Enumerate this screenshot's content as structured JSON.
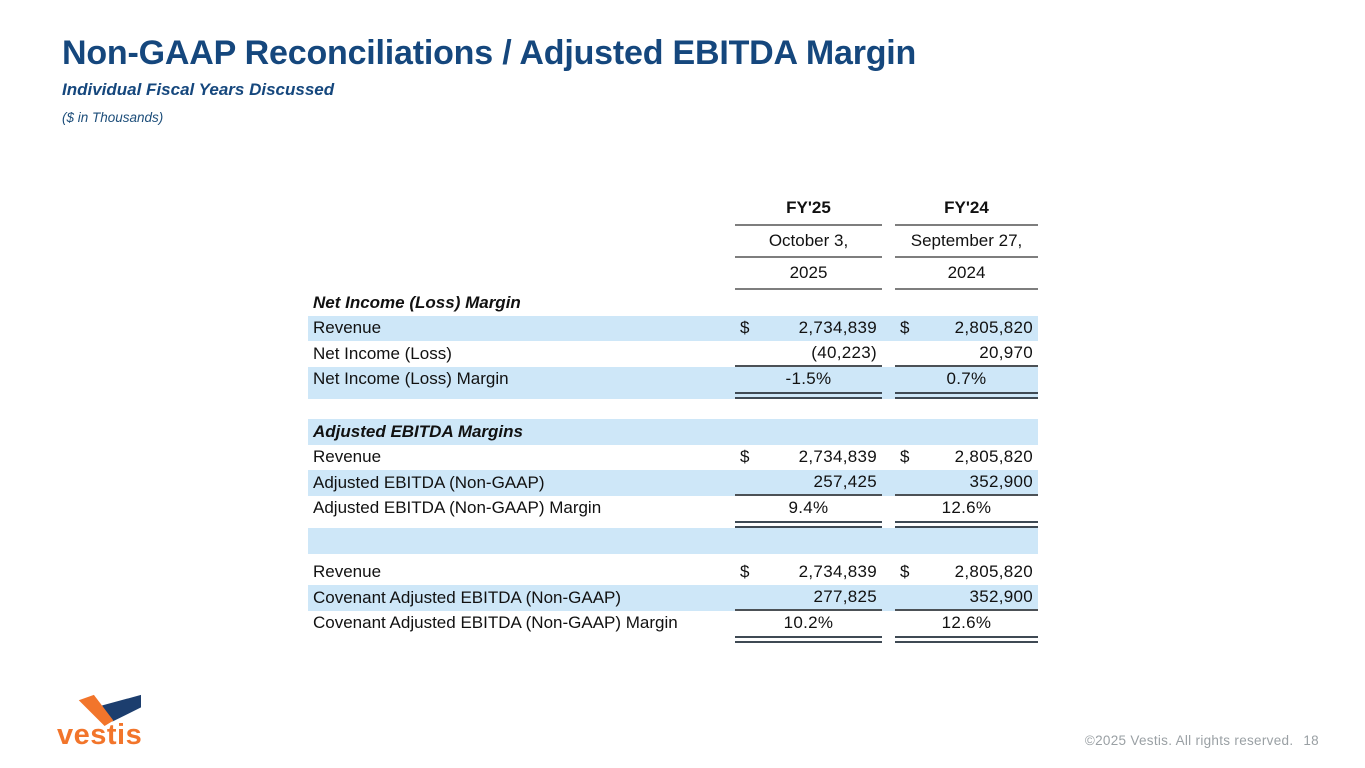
{
  "slide": {
    "title": "Non-GAAP Reconciliations / Adjusted EBITDA Margin",
    "subtitle": "Individual Fiscal Years Discussed",
    "units_note": "($ in Thousands)"
  },
  "table": {
    "currency_symbol": "$",
    "col_headers": [
      {
        "fy": "FY'25",
        "date_line1": "October 3,",
        "date_line2": "2025"
      },
      {
        "fy": "FY'24",
        "date_line1": "September 27,",
        "date_line2": "2024"
      }
    ],
    "sections": [
      {
        "header": "Net Income (Loss) Margin",
        "header_bg": "white",
        "gap_after": 20,
        "rows": [
          {
            "label": "Revenue",
            "dollar": true,
            "align": "right",
            "bg": "blue",
            "rule": null,
            "values": [
              "2,734,839",
              "2,805,820"
            ]
          },
          {
            "label": "Net Income (Loss)",
            "dollar": false,
            "align": "right",
            "bg": "white",
            "rule": "single",
            "values": [
              "(40,223)",
              "20,970"
            ]
          },
          {
            "label": "Net Income (Loss) Margin",
            "dollar": false,
            "align": "center",
            "bg": "blue",
            "rule": "double",
            "values": [
              "-1.5%",
              "0.7%"
            ]
          }
        ]
      },
      {
        "header": "Adjusted EBITDA Margins",
        "header_bg": "blue",
        "gap_after": 6,
        "rows": [
          {
            "label": "Revenue",
            "dollar": true,
            "align": "right",
            "bg": "white",
            "rule": null,
            "values": [
              "2,734,839",
              "2,805,820"
            ]
          },
          {
            "label": "Adjusted EBITDA (Non-GAAP)",
            "dollar": false,
            "align": "right",
            "bg": "blue",
            "rule": "single",
            "values": [
              "257,425",
              "352,900"
            ]
          },
          {
            "label": "Adjusted EBITDA (Non-GAAP) Margin",
            "dollar": false,
            "align": "center",
            "bg": "white",
            "rule": "double",
            "values": [
              "9.4%",
              "12.6%"
            ]
          },
          {
            "label": "",
            "dollar": false,
            "align": "right",
            "bg": "blue",
            "rule": null,
            "blank": true,
            "values": [
              "",
              ""
            ]
          }
        ]
      },
      {
        "header": null,
        "header_bg": "white",
        "gap_after": 0,
        "rows": [
          {
            "label": "Revenue",
            "dollar": true,
            "align": "right",
            "bg": "white",
            "rule": null,
            "values": [
              "2,734,839",
              "2,805,820"
            ]
          },
          {
            "label": "Covenant Adjusted EBITDA (Non-GAAP)",
            "dollar": false,
            "align": "right",
            "bg": "blue",
            "rule": "single",
            "values": [
              "277,825",
              "352,900"
            ]
          },
          {
            "label": "Covenant Adjusted EBITDA (Non-GAAP) Margin",
            "dollar": false,
            "align": "center",
            "bg": "white",
            "rule": "double",
            "values": [
              "10.2%",
              "12.6%"
            ]
          }
        ]
      }
    ]
  },
  "logo": {
    "wordmark": "vestis",
    "icon": "vestis-check-icon"
  },
  "footer": {
    "copyright": "©2025 Vestis. All rights reserved.",
    "page_number": "18"
  },
  "colors": {
    "brand_navy": "#15477D",
    "brand_orange": "#F2752B",
    "row_blue": "#CEE7F8",
    "rule_gray": "#7e7e7e",
    "rule_dark": "#3f4a54",
    "footer_gray": "#9aa0a4"
  }
}
